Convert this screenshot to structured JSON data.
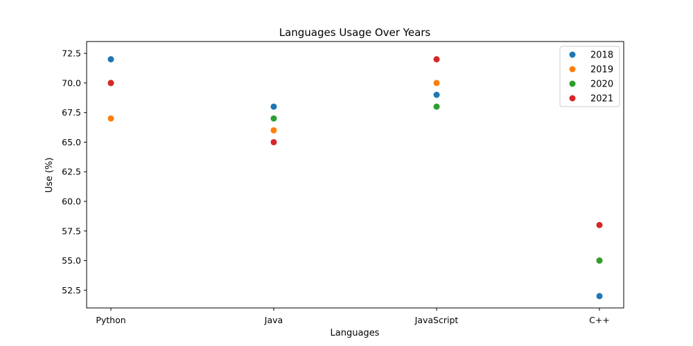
{
  "chart_data": {
    "type": "scatter",
    "title": "Languages Usage Over Years",
    "xlabel": "Languages",
    "ylabel": "Use (%)",
    "categories": [
      "Python",
      "Java",
      "JavaScript",
      "C++"
    ],
    "ylim": [
      51.0,
      73.5
    ],
    "yticks": [
      52.5,
      55.0,
      57.5,
      60.0,
      62.5,
      65.0,
      67.5,
      70.0,
      72.5
    ],
    "grid": false,
    "legend_position": "top-right",
    "series": [
      {
        "name": "2018",
        "color": "#1f77b4",
        "values": [
          72,
          68,
          69,
          52
        ]
      },
      {
        "name": "2019",
        "color": "#ff7f0e",
        "values": [
          67,
          66,
          70,
          55
        ]
      },
      {
        "name": "2020",
        "color": "#2ca02c",
        "values": [
          70,
          67,
          68,
          55
        ]
      },
      {
        "name": "2021",
        "color": "#d62728",
        "values": [
          70,
          65,
          72,
          58
        ]
      }
    ]
  }
}
